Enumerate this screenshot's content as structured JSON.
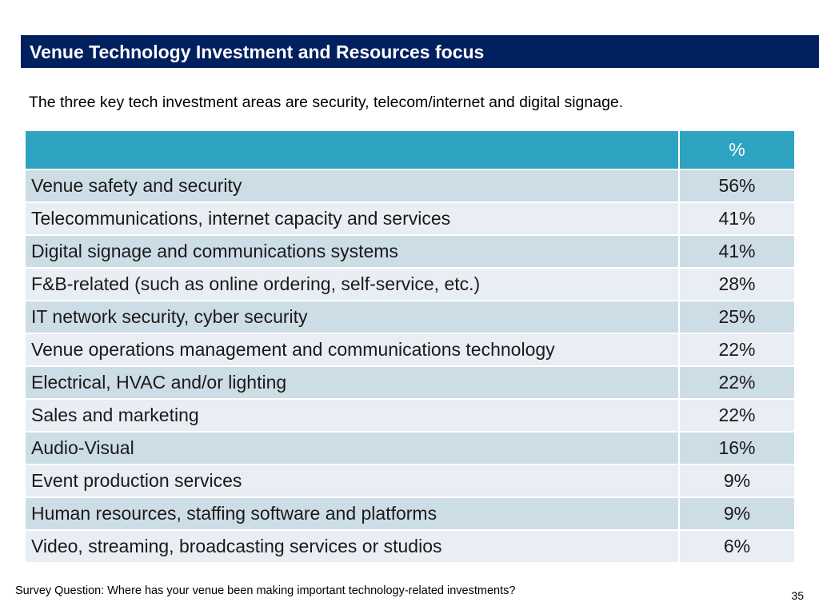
{
  "slide": {
    "title": "Venue Technology Investment and Resources focus",
    "subtitle": "The three key tech investment areas are security, telecom/internet and digital signage.",
    "footnote": "Survey Question: Where has your venue been making important technology-related investments?",
    "page_number": "35"
  },
  "table": {
    "header": {
      "label": "",
      "value": "%"
    },
    "rows": [
      {
        "label": "Venue safety and security",
        "value": "56%"
      },
      {
        "label": "Telecommunications, internet capacity and services",
        "value": "41%"
      },
      {
        "label": "Digital signage and communications systems",
        "value": "41%"
      },
      {
        "label": "F&B-related (such as online ordering, self-service, etc.)",
        "value": "28%"
      },
      {
        "label": "IT network security, cyber security",
        "value": "25%"
      },
      {
        "label": "Venue operations management and communications technology",
        "value": "22%"
      },
      {
        "label": "Electrical, HVAC and/or lighting",
        "value": "22%"
      },
      {
        "label": "Sales and marketing",
        "value": "22%"
      },
      {
        "label": "Audio-Visual",
        "value": "16%"
      },
      {
        "label": "Event production services",
        "value": "9%"
      },
      {
        "label": "Human resources, staffing software and platforms",
        "value": "9%"
      },
      {
        "label": "Video, streaming, broadcasting services or studios",
        "value": "6%"
      }
    ]
  },
  "colors": {
    "title_bar": "#002060",
    "table_header": "#2ea3c2",
    "row_odd": "#cddde6",
    "row_even": "#e8eef3"
  }
}
